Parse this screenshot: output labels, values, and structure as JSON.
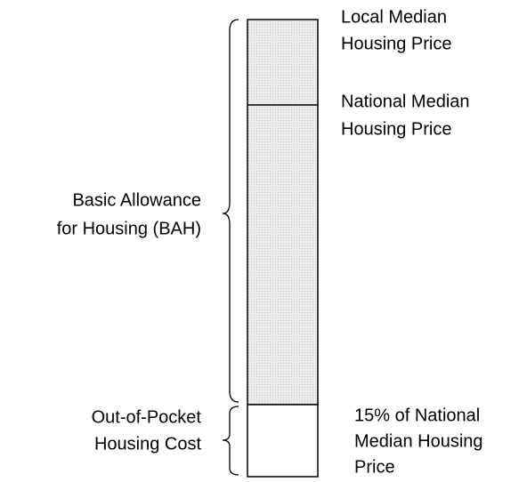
{
  "labels": {
    "local_median": [
      "Local Median",
      "Housing Price"
    ],
    "national_median": [
      "National Median",
      "Housing Price"
    ],
    "bah": [
      "Basic Allowance",
      "for Housing (BAH)"
    ],
    "out_of_pocket": [
      "Out-of-Pocket",
      "Housing Cost"
    ],
    "fifteen_percent": [
      "15% of National",
      "Median Housing",
      "Price"
    ]
  }
}
